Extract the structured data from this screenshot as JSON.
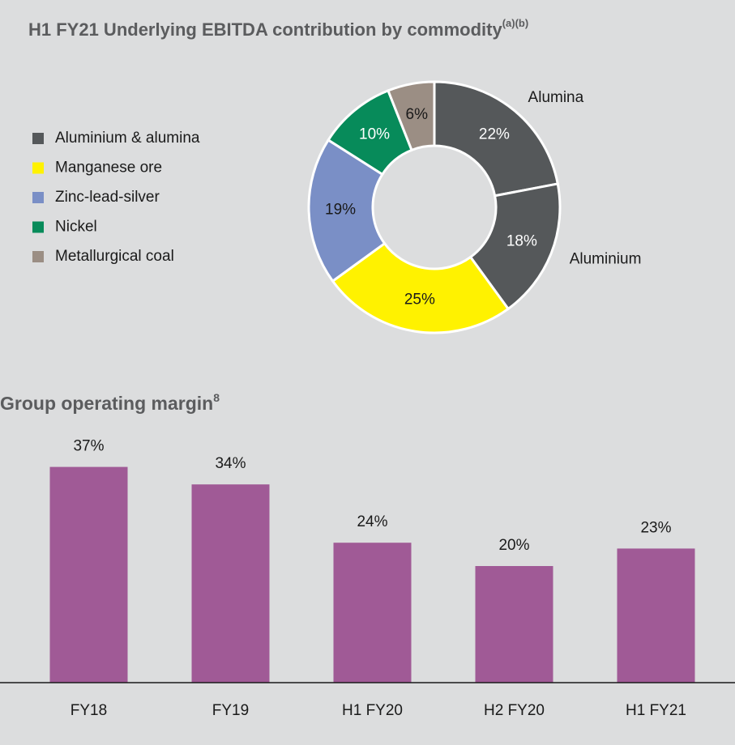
{
  "chart_data": [
    {
      "type": "pie",
      "title": "H1 FY21 Underlying EBITDA contribution by commodity",
      "title_superscript": "(a)(b)",
      "values": [
        22,
        18,
        25,
        19,
        10,
        6
      ],
      "value_labels": [
        "22%",
        "18%",
        "25%",
        "19%",
        "10%",
        "6%"
      ],
      "colors": [
        "#55585a",
        "#55585a",
        "#fff200",
        "#7a8fc6",
        "#078b5a",
        "#9b8e84"
      ],
      "slice_labels": [
        "Alumina",
        "Aluminium",
        null,
        null,
        null,
        null
      ],
      "legend": [
        {
          "name": "Aluminium & alumina",
          "color": "#55585a"
        },
        {
          "name": "Manganese ore",
          "color": "#fff200"
        },
        {
          "name": "Zinc-lead-silver",
          "color": "#7a8fc6"
        },
        {
          "name": "Nickel",
          "color": "#078b5a"
        },
        {
          "name": "Metallurgical coal",
          "color": "#9b8e84"
        }
      ]
    },
    {
      "type": "bar",
      "title": "Group operating margin",
      "title_superscript": "8",
      "categories": [
        "FY18",
        "FY19",
        "H1 FY20",
        "H2 FY20",
        "H1 FY21"
      ],
      "values": [
        37,
        34,
        24,
        20,
        23
      ],
      "value_labels": [
        "37%",
        "34%",
        "24%",
        "20%",
        "23%"
      ],
      "color": "#a05a96",
      "ylim": [
        0,
        40
      ]
    }
  ]
}
